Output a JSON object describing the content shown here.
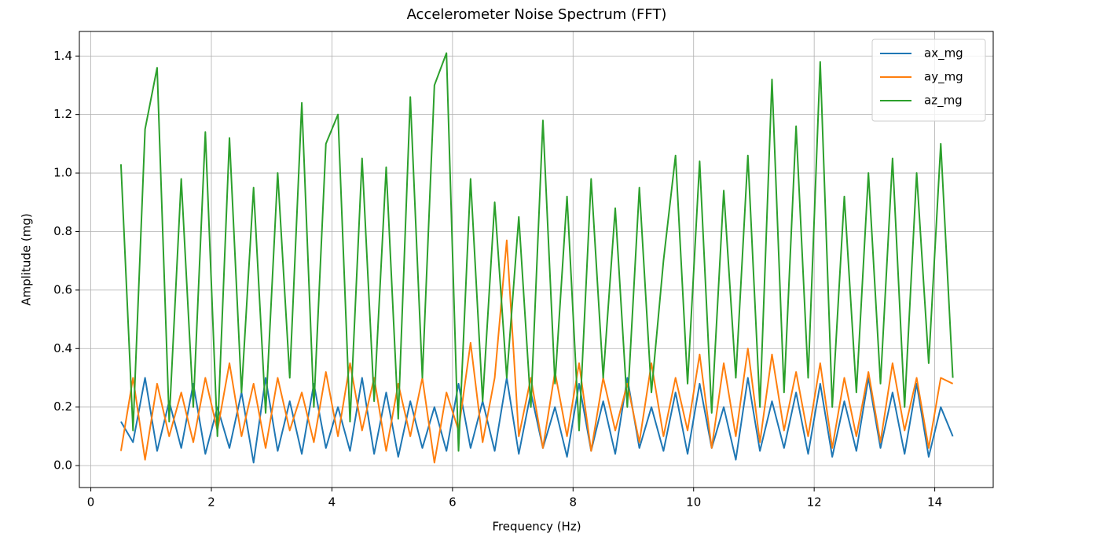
{
  "chart_data": {
    "type": "line",
    "title": "Accelerometer Noise Spectrum (FFT)",
    "xlabel": "Frequency (Hz)",
    "ylabel": "Amplitude (mg)",
    "x": [
      0.5,
      0.7,
      0.9,
      1.1,
      1.3,
      1.5,
      1.7,
      1.9,
      2.1,
      2.3,
      2.5,
      2.7,
      2.9,
      3.1,
      3.3,
      3.5,
      3.7,
      3.9,
      4.1,
      4.3,
      4.5,
      4.7,
      4.9,
      5.1,
      5.3,
      5.5,
      5.7,
      5.9,
      6.1,
      6.3,
      6.5,
      6.7,
      6.9,
      7.1,
      7.3,
      7.5,
      7.7,
      7.9,
      8.1,
      8.3,
      8.5,
      8.7,
      8.9,
      9.1,
      9.3,
      9.5,
      9.7,
      9.9,
      10.1,
      10.3,
      10.5,
      10.7,
      10.9,
      11.1,
      11.3,
      11.5,
      11.7,
      11.9,
      12.1,
      12.3,
      12.5,
      12.7,
      12.9,
      13.1,
      13.3,
      13.5,
      13.7,
      13.9,
      14.1,
      14.3
    ],
    "series": [
      {
        "name": "ax_mg",
        "color": "#1f77b4",
        "values": [
          0.15,
          0.08,
          0.3,
          0.05,
          0.22,
          0.06,
          0.28,
          0.04,
          0.2,
          0.06,
          0.25,
          0.01,
          0.3,
          0.05,
          0.22,
          0.04,
          0.28,
          0.06,
          0.2,
          0.05,
          0.3,
          0.04,
          0.25,
          0.03,
          0.22,
          0.06,
          0.2,
          0.05,
          0.28,
          0.06,
          0.22,
          0.05,
          0.3,
          0.04,
          0.25,
          0.06,
          0.2,
          0.03,
          0.28,
          0.05,
          0.22,
          0.04,
          0.3,
          0.06,
          0.2,
          0.05,
          0.25,
          0.04,
          0.28,
          0.06,
          0.2,
          0.02,
          0.3,
          0.05,
          0.22,
          0.06,
          0.25,
          0.04,
          0.28,
          0.03,
          0.22,
          0.05,
          0.3,
          0.06,
          0.25,
          0.04,
          0.28,
          0.03,
          0.2,
          0.1
        ]
      },
      {
        "name": "ay_mg",
        "color": "#ff7f0e",
        "values": [
          0.05,
          0.3,
          0.02,
          0.28,
          0.1,
          0.25,
          0.08,
          0.3,
          0.12,
          0.35,
          0.1,
          0.28,
          0.06,
          0.3,
          0.12,
          0.25,
          0.08,
          0.32,
          0.1,
          0.35,
          0.12,
          0.3,
          0.05,
          0.28,
          0.1,
          0.3,
          0.01,
          0.25,
          0.12,
          0.42,
          0.08,
          0.3,
          0.77,
          0.1,
          0.3,
          0.06,
          0.32,
          0.1,
          0.35,
          0.05,
          0.3,
          0.12,
          0.28,
          0.08,
          0.35,
          0.1,
          0.3,
          0.12,
          0.38,
          0.06,
          0.35,
          0.1,
          0.4,
          0.08,
          0.38,
          0.12,
          0.32,
          0.1,
          0.35,
          0.06,
          0.3,
          0.1,
          0.32,
          0.08,
          0.35,
          0.12,
          0.3,
          0.06,
          0.3,
          0.28
        ]
      },
      {
        "name": "az_mg",
        "color": "#2ca02c",
        "values": [
          1.03,
          0.12,
          1.15,
          1.36,
          0.15,
          0.98,
          0.2,
          1.14,
          0.1,
          1.12,
          0.25,
          0.95,
          0.18,
          1.0,
          0.3,
          1.24,
          0.2,
          1.1,
          1.2,
          0.15,
          1.05,
          0.22,
          1.02,
          0.16,
          1.26,
          0.3,
          1.3,
          1.41,
          0.05,
          0.98,
          0.22,
          0.9,
          0.3,
          0.85,
          0.2,
          1.18,
          0.28,
          0.92,
          0.12,
          0.98,
          0.3,
          0.88,
          0.2,
          0.95,
          0.25,
          0.7,
          1.06,
          0.28,
          1.04,
          0.18,
          0.94,
          0.3,
          1.06,
          0.2,
          1.32,
          0.25,
          1.16,
          0.3,
          1.38,
          0.2,
          0.92,
          0.25,
          1.0,
          0.28,
          1.05,
          0.2,
          1.0,
          0.35,
          1.1,
          0.3
        ]
      }
    ],
    "xlim": [
      -0.19,
      14.97
    ],
    "ylim": [
      -0.075,
      1.484
    ],
    "xticks": [
      0,
      2,
      4,
      6,
      8,
      10,
      12,
      14
    ],
    "yticks": [
      {
        "value": 0,
        "label": "0.0"
      },
      0.2,
      0.4,
      0.6,
      0.8,
      {
        "value": 1,
        "label": "1.0"
      },
      1.2,
      1.4
    ],
    "grid": true,
    "legend": "upper right"
  }
}
